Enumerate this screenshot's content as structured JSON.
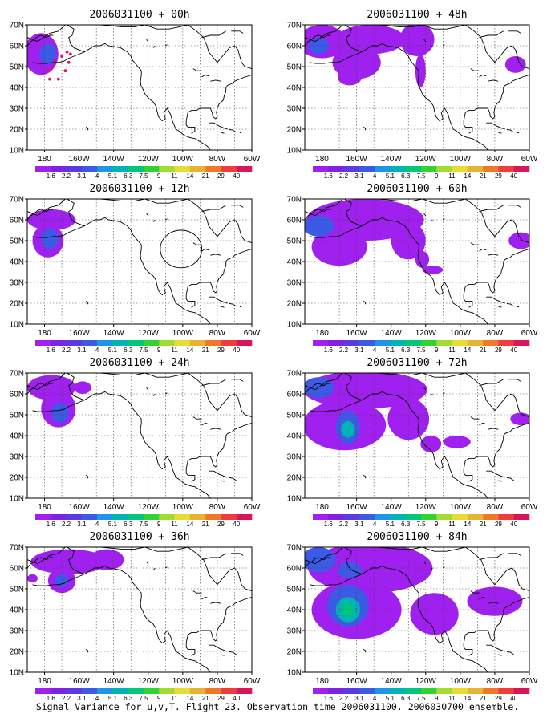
{
  "figure": {
    "caption": "Signal Variance for u,v,T. Flight 23. Observation time 2006031100. 2006030700 ensemble."
  },
  "colorbar": {
    "labels": [
      "1.6",
      "2.2",
      "3.1",
      "4",
      "5.1",
      "6.3",
      "7.5",
      "9",
      "11",
      "14",
      "21",
      "29",
      "40"
    ],
    "colors": [
      "#a020f0",
      "#7d22e6",
      "#5a3ae6",
      "#3c5ae6",
      "#1e96e6",
      "#00b4b4",
      "#00c878",
      "#32d232",
      "#a0dc32",
      "#e6dc32",
      "#e6b432",
      "#f07828",
      "#f03c3c",
      "#dc145a"
    ]
  },
  "icons": {
    "map-icon": "coastline-map",
    "contour-icon": "filled-contour"
  },
  "chart_data": [
    {
      "type": "heatmap",
      "title": "2006031100 + 00h",
      "x_tick_labels": [
        "180",
        "160W",
        "140W",
        "120W",
        "100W",
        "80W",
        "60W"
      ],
      "y_tick_labels": [
        "10N",
        "20N",
        "30N",
        "40N",
        "50N",
        "60N",
        "70N"
      ],
      "xlim": [
        170,
        300
      ],
      "ylim": [
        10,
        70
      ],
      "grid": true,
      "blobs": [
        {
          "lon": 178,
          "lat": 56,
          "rlon": 10,
          "rlat": 10,
          "level": 1
        },
        {
          "lon": 182,
          "lat": 56,
          "rlon": 5,
          "rlat": 5,
          "level": 2
        }
      ],
      "observation_track": [
        [
          182,
          48
        ],
        [
          183,
          44
        ],
        [
          188,
          44
        ],
        [
          192,
          48
        ],
        [
          194,
          52
        ],
        [
          195,
          56
        ],
        [
          193,
          57
        ],
        [
          190,
          55
        ],
        [
          186,
          53
        ],
        [
          184,
          50
        ]
      ],
      "circle": null
    },
    {
      "type": "heatmap",
      "title": "2006031100 + 48h",
      "x_tick_labels": [
        "180",
        "160W",
        "140W",
        "120W",
        "100W",
        "80W",
        "60W"
      ],
      "y_tick_labels": [
        "10N",
        "20N",
        "30N",
        "40N",
        "50N",
        "60N",
        "70N"
      ],
      "xlim": [
        170,
        300
      ],
      "ylim": [
        10,
        70
      ],
      "grid": true,
      "blobs": [
        {
          "lon": 180,
          "lat": 62,
          "rlon": 14,
          "rlat": 8,
          "level": 1
        },
        {
          "lon": 208,
          "lat": 63,
          "rlon": 20,
          "rlat": 7,
          "level": 1
        },
        {
          "lon": 200,
          "lat": 52,
          "rlon": 14,
          "rlat": 8,
          "level": 1
        },
        {
          "lon": 235,
          "lat": 63,
          "rlon": 10,
          "rlat": 8,
          "level": 1
        },
        {
          "lon": 237,
          "lat": 48,
          "rlon": 3,
          "rlat": 8,
          "level": 1
        },
        {
          "lon": 196,
          "lat": 45,
          "rlon": 7,
          "rlat": 4,
          "level": 1
        },
        {
          "lon": 292,
          "lat": 51,
          "rlon": 6,
          "rlat": 4,
          "level": 1
        },
        {
          "lon": 178,
          "lat": 60,
          "rlon": 6,
          "rlat": 4,
          "level": 2
        }
      ],
      "observation_track": [],
      "circle": null
    },
    {
      "type": "heatmap",
      "title": "2006031100 + 12h",
      "x_tick_labels": [
        "180",
        "160W",
        "140W",
        "120W",
        "100W",
        "80W",
        "60W"
      ],
      "y_tick_labels": [
        "10N",
        "20N",
        "30N",
        "40N",
        "50N",
        "60N",
        "70N"
      ],
      "xlim": [
        170,
        300
      ],
      "ylim": [
        10,
        70
      ],
      "grid": true,
      "blobs": [
        {
          "lon": 184,
          "lat": 60,
          "rlon": 14,
          "rlat": 5,
          "level": 1
        },
        {
          "lon": 182,
          "lat": 50,
          "rlon": 9,
          "rlat": 8,
          "level": 1
        },
        {
          "lon": 183,
          "lat": 51,
          "rlon": 5,
          "rlat": 5,
          "level": 2
        }
      ],
      "observation_track": [],
      "circle": {
        "lon": 259,
        "lat": 46,
        "rlon": 12,
        "rlat": 9
      }
    },
    {
      "type": "heatmap",
      "title": "2006031100 + 60h",
      "x_tick_labels": [
        "180",
        "160W",
        "140W",
        "120W",
        "100W",
        "80W",
        "60W"
      ],
      "y_tick_labels": [
        "10N",
        "20N",
        "30N",
        "40N",
        "50N",
        "60N",
        "70N"
      ],
      "xlim": [
        170,
        300
      ],
      "ylim": [
        10,
        70
      ],
      "grid": true,
      "blobs": [
        {
          "lon": 205,
          "lat": 60,
          "rlon": 34,
          "rlat": 10,
          "level": 1
        },
        {
          "lon": 190,
          "lat": 47,
          "rlon": 16,
          "rlat": 9,
          "level": 1
        },
        {
          "lon": 230,
          "lat": 50,
          "rlon": 10,
          "rlat": 9,
          "level": 1
        },
        {
          "lon": 238,
          "lat": 41,
          "rlon": 4,
          "rlat": 4,
          "level": 1
        },
        {
          "lon": 244,
          "lat": 36,
          "rlon": 6,
          "rlat": 2,
          "level": 1
        },
        {
          "lon": 295,
          "lat": 50,
          "rlon": 7,
          "rlat": 4,
          "level": 1
        },
        {
          "lon": 178,
          "lat": 57,
          "rlon": 9,
          "rlat": 5,
          "level": 2
        }
      ],
      "observation_track": [],
      "circle": null
    },
    {
      "type": "heatmap",
      "title": "2006031100 + 24h",
      "x_tick_labels": [
        "180",
        "160W",
        "140W",
        "120W",
        "100W",
        "80W",
        "60W"
      ],
      "y_tick_labels": [
        "10N",
        "20N",
        "30N",
        "40N",
        "50N",
        "60N",
        "70N"
      ],
      "xlim": [
        170,
        300
      ],
      "ylim": [
        10,
        70
      ],
      "grid": true,
      "blobs": [
        {
          "lon": 184,
          "lat": 63,
          "rlon": 14,
          "rlat": 6,
          "level": 1
        },
        {
          "lon": 188,
          "lat": 53,
          "rlon": 10,
          "rlat": 9,
          "level": 1
        },
        {
          "lon": 189,
          "lat": 51,
          "rlon": 5,
          "rlat": 5,
          "level": 2
        },
        {
          "lon": 202,
          "lat": 63,
          "rlon": 5,
          "rlat": 3,
          "level": 1
        }
      ],
      "observation_track": [],
      "circle": null
    },
    {
      "type": "heatmap",
      "title": "2006031100 + 72h",
      "x_tick_labels": [
        "180",
        "160W",
        "140W",
        "120W",
        "100W",
        "80W",
        "60W"
      ],
      "y_tick_labels": [
        "10N",
        "20N",
        "30N",
        "40N",
        "50N",
        "60N",
        "70N"
      ],
      "xlim": [
        170,
        300
      ],
      "ylim": [
        10,
        70
      ],
      "grid": true,
      "blobs": [
        {
          "lon": 205,
          "lat": 62,
          "rlon": 36,
          "rlat": 9,
          "level": 1
        },
        {
          "lon": 193,
          "lat": 45,
          "rlon": 24,
          "rlat": 12,
          "level": 1
        },
        {
          "lon": 230,
          "lat": 48,
          "rlon": 12,
          "rlat": 10,
          "level": 1
        },
        {
          "lon": 243,
          "lat": 36,
          "rlon": 6,
          "rlat": 4,
          "level": 1
        },
        {
          "lon": 258,
          "lat": 37,
          "rlon": 8,
          "rlat": 3,
          "level": 1
        },
        {
          "lon": 295,
          "lat": 48,
          "rlon": 6,
          "rlat": 3,
          "level": 1
        },
        {
          "lon": 178,
          "lat": 63,
          "rlon": 9,
          "rlat": 5,
          "level": 2
        },
        {
          "lon": 195,
          "lat": 44,
          "rlon": 7,
          "rlat": 8,
          "level": 2
        },
        {
          "lon": 195,
          "lat": 43,
          "rlon": 4,
          "rlat": 4,
          "level": 3
        }
      ],
      "observation_track": [],
      "circle": null
    },
    {
      "type": "heatmap",
      "title": "2006031100 + 36h",
      "x_tick_labels": [
        "180",
        "160W",
        "140W",
        "120W",
        "100W",
        "80W",
        "60W"
      ],
      "y_tick_labels": [
        "10N",
        "20N",
        "30N",
        "40N",
        "50N",
        "60N",
        "70N"
      ],
      "xlim": [
        170,
        300
      ],
      "ylim": [
        10,
        70
      ],
      "grid": true,
      "blobs": [
        {
          "lon": 194,
          "lat": 63,
          "rlon": 22,
          "rlat": 6,
          "level": 1
        },
        {
          "lon": 216,
          "lat": 64,
          "rlon": 10,
          "rlat": 5,
          "level": 1
        },
        {
          "lon": 190,
          "lat": 54,
          "rlon": 8,
          "rlat": 6,
          "level": 1
        },
        {
          "lon": 173,
          "lat": 55,
          "rlon": 3,
          "rlat": 2,
          "level": 1
        },
        {
          "lon": 190,
          "lat": 54,
          "rlon": 4,
          "rlat": 3,
          "level": 2
        }
      ],
      "observation_track": [],
      "circle": null
    },
    {
      "type": "heatmap",
      "title": "2006031100 + 84h",
      "x_tick_labels": [
        "180",
        "160W",
        "140W",
        "120W",
        "100W",
        "80W",
        "60W"
      ],
      "y_tick_labels": [
        "10N",
        "20N",
        "30N",
        "40N",
        "50N",
        "60N",
        "70N"
      ],
      "xlim": [
        170,
        300
      ],
      "ylim": [
        10,
        70
      ],
      "grid": true,
      "blobs": [
        {
          "lon": 208,
          "lat": 60,
          "rlon": 36,
          "rlat": 12,
          "level": 1
        },
        {
          "lon": 200,
          "lat": 40,
          "rlon": 26,
          "rlat": 14,
          "level": 1
        },
        {
          "lon": 245,
          "lat": 38,
          "rlon": 14,
          "rlat": 10,
          "level": 1
        },
        {
          "lon": 280,
          "lat": 44,
          "rlon": 16,
          "rlat": 7,
          "level": 1
        },
        {
          "lon": 178,
          "lat": 64,
          "rlon": 10,
          "rlat": 6,
          "level": 2
        },
        {
          "lon": 195,
          "lat": 42,
          "rlon": 12,
          "rlat": 10,
          "level": 2
        },
        {
          "lon": 196,
          "lat": 59,
          "rlon": 7,
          "rlat": 4,
          "level": 2
        },
        {
          "lon": 195,
          "lat": 40,
          "rlon": 7,
          "rlat": 6,
          "level": 3
        },
        {
          "lon": 195,
          "lat": 40,
          "rlon": 3,
          "rlat": 3,
          "level": 4
        }
      ],
      "observation_track": [],
      "circle": null
    }
  ]
}
